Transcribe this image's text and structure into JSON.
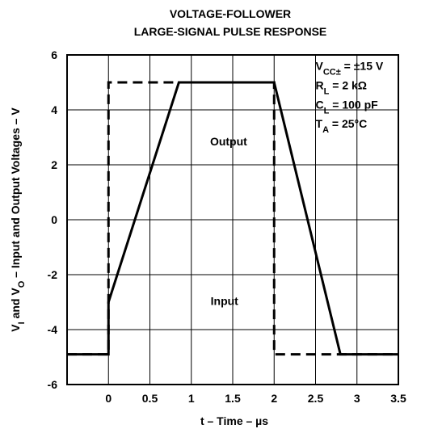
{
  "chart_data": {
    "type": "line",
    "title": [
      "VOLTAGE-FOLLOWER",
      "LARGE-SIGNAL PULSE RESPONSE"
    ],
    "xlabel": [
      {
        "text": "t – Time – µs"
      }
    ],
    "ylabel": [
      {
        "text": "V"
      },
      {
        "text": "I",
        "sub": true
      },
      {
        "text": " and V"
      },
      {
        "text": "O",
        "sub": true
      },
      {
        "text": " – Input and Output Voltages – V"
      }
    ],
    "xlim": [
      -0.5,
      3.5
    ],
    "ylim": [
      -6,
      6
    ],
    "xticks": [
      0,
      0.5,
      1,
      1.5,
      2,
      2.5,
      3,
      3.5
    ],
    "yticks": [
      -6,
      -4,
      -2,
      0,
      2,
      4,
      6
    ],
    "grid": true,
    "series": [
      {
        "name": "Input",
        "color": "#000000",
        "dashed": true,
        "x": [
          -0.5,
          0,
          0,
          2,
          2,
          3.5
        ],
        "values": [
          -4.9,
          -4.9,
          5,
          5,
          -4.9,
          -4.9
        ]
      },
      {
        "name": "Output",
        "color": "#000000",
        "dashed": false,
        "x": [
          -0.5,
          0,
          0,
          0.85,
          2,
          2.8,
          3.5
        ],
        "values": [
          -4.9,
          -4.9,
          -3.0,
          5,
          5,
          -4.9,
          -4.9
        ]
      }
    ],
    "annotations": [
      {
        "parts": [
          {
            "text": "Output"
          }
        ],
        "x": 1.45,
        "y": 2.7
      },
      {
        "parts": [
          {
            "text": "Input"
          }
        ],
        "x": 1.4,
        "y": -3.1
      },
      {
        "parts": [
          {
            "text": "V"
          },
          {
            "text": "CC±",
            "sub": true
          },
          {
            "text": " = ±15 V"
          }
        ],
        "x": 2.5,
        "y": 5.45
      },
      {
        "parts": [
          {
            "text": "R"
          },
          {
            "text": "L",
            "sub": true
          },
          {
            "text": " = 2 kΩ"
          }
        ],
        "x": 2.5,
        "y": 4.75
      },
      {
        "parts": [
          {
            "text": "C"
          },
          {
            "text": "L",
            "sub": true
          },
          {
            "text": " = 100 pF"
          }
        ],
        "x": 2.5,
        "y": 4.05
      },
      {
        "parts": [
          {
            "text": "T"
          },
          {
            "text": "A",
            "sub": true
          },
          {
            "text": " = 25°C"
          }
        ],
        "x": 2.5,
        "y": 3.35
      }
    ]
  }
}
